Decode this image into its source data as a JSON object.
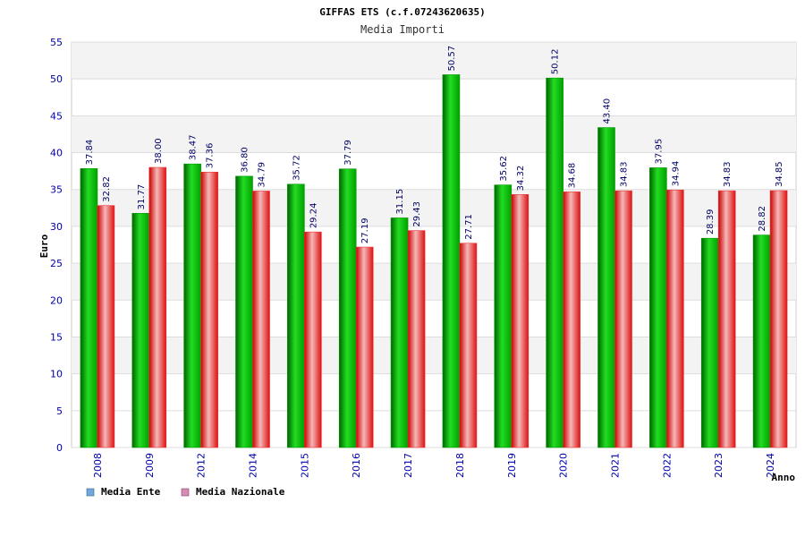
{
  "chart_data": {
    "type": "bar",
    "title": "GIFFAS ETS (c.f.07243620635)",
    "subtitle": "Media Importi",
    "xlabel": "Anno",
    "ylabel": "Euro",
    "ylim": [
      0,
      55
    ],
    "yticks": [
      0,
      5,
      10,
      15,
      20,
      25,
      30,
      35,
      40,
      45,
      50,
      55
    ],
    "grid": true,
    "legend_position": "bottom-left",
    "categories": [
      "2008",
      "2009",
      "2012",
      "2014",
      "2015",
      "2016",
      "2017",
      "2018",
      "2019",
      "2020",
      "2021",
      "2022",
      "2023",
      "2024"
    ],
    "series": [
      {
        "name": "Media Ente",
        "color": "#00b000",
        "legend_color": "#6fa8dc",
        "values": [
          37.84,
          31.77,
          38.47,
          36.8,
          35.72,
          37.79,
          31.15,
          50.57,
          35.62,
          50.12,
          43.4,
          37.95,
          28.39,
          28.82
        ],
        "labels": [
          "37.84",
          "31.77",
          "38.47",
          "36.80",
          "35.72",
          "37.79",
          "31.15",
          "50.57",
          "35.62",
          "50.12",
          "43.40",
          "37.95",
          "28.39",
          "28.82"
        ]
      },
      {
        "name": "Media Nazionale",
        "color": "#e02020",
        "legend_color": "#d58cb4",
        "values": [
          32.82,
          38.0,
          37.36,
          34.79,
          29.24,
          27.19,
          29.43,
          27.71,
          34.32,
          34.68,
          34.83,
          34.94,
          34.83,
          34.85
        ],
        "labels": [
          "32.82",
          "38.00",
          "37.36",
          "34.79",
          "29.24",
          "27.19",
          "29.43",
          "27.71",
          "34.32",
          "34.68",
          "34.83",
          "34.94",
          "34.83",
          "34.85"
        ]
      }
    ]
  }
}
